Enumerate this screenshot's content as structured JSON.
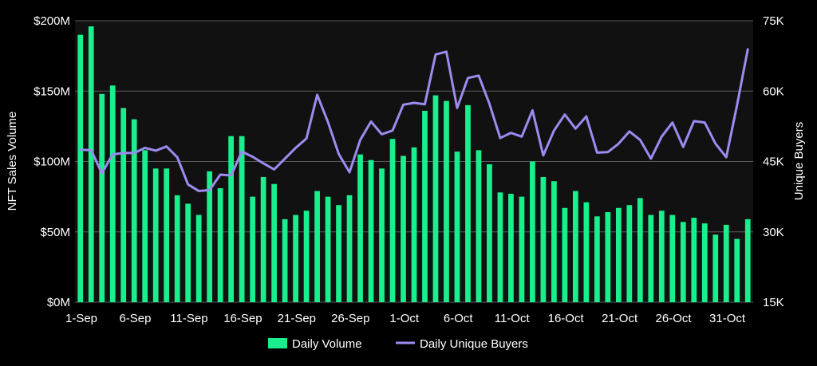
{
  "chart_data": {
    "type": "bar",
    "title": "",
    "xlabel": "",
    "ylabel": "NFT Sales Volume",
    "y2label": "Unique Buyers",
    "ylim": [
      0,
      200
    ],
    "y2lim": [
      15000,
      75000
    ],
    "y_ticks": [
      "$0M",
      "$50M",
      "$100M",
      "$150M",
      "$200M"
    ],
    "y2_ticks": [
      "15K",
      "30K",
      "45K",
      "60K",
      "75K"
    ],
    "x_ticks": [
      "1-Sep",
      "6-Sep",
      "11-Sep",
      "16-Sep",
      "21-Sep",
      "26-Sep",
      "1-Oct",
      "6-Oct",
      "11-Oct",
      "16-Oct",
      "21-Oct",
      "26-Oct",
      "31-Oct"
    ],
    "grid": true,
    "legend_position": "bottom",
    "colors": {
      "bar": "#19ef8c",
      "line": "#9b8cf0",
      "background": "#000000",
      "plot_bg": "#111111",
      "grid": "#5a5a5a"
    },
    "series": [
      {
        "name": "Daily Volume",
        "type": "bar",
        "axis": "left",
        "values": [
          190,
          196,
          148,
          154,
          138,
          130,
          108,
          95,
          95,
          76,
          70,
          62,
          93,
          81,
          118,
          118,
          75,
          89,
          84,
          59,
          62,
          65,
          79,
          75,
          69,
          76,
          105,
          101,
          95,
          116,
          104,
          110,
          136,
          147,
          143,
          107,
          140,
          108,
          98,
          78,
          77,
          75,
          100,
          89,
          86,
          67,
          79,
          71,
          61,
          64,
          67,
          69,
          74,
          62,
          65,
          62,
          57,
          60,
          56,
          48,
          55,
          45,
          59
        ]
      },
      {
        "name": "Daily Unique Buyers",
        "type": "line",
        "axis": "right",
        "values": [
          47500,
          47400,
          42500,
          46500,
          46800,
          46800,
          47900,
          47300,
          48200,
          45900,
          40100,
          38700,
          38900,
          42200,
          42000,
          47100,
          46000,
          44600,
          43300,
          45600,
          47900,
          49900,
          59200,
          53400,
          46600,
          42700,
          49600,
          53500,
          50800,
          51600,
          57100,
          57500,
          57200,
          67800,
          68400,
          56400,
          62800,
          63300,
          57300,
          50000,
          51100,
          50300,
          55900,
          46300,
          51600,
          55000,
          52000,
          54600,
          46900,
          47000,
          48800,
          51400,
          49600,
          45600,
          50300,
          53300,
          48100,
          53600,
          53300,
          48800,
          45900,
          57000,
          68900
        ]
      }
    ]
  }
}
